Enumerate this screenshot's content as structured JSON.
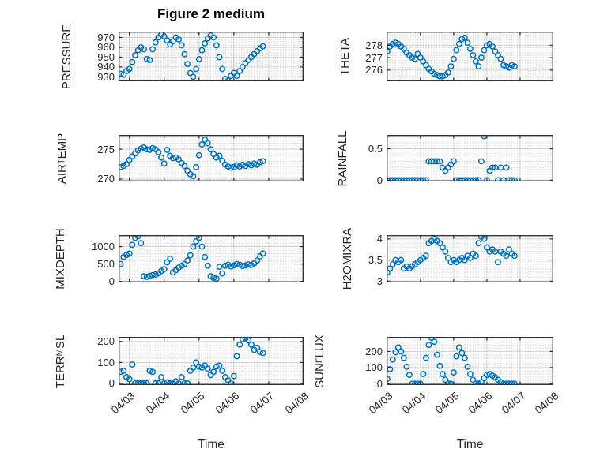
{
  "figure": {
    "title": "Figure 2 medium",
    "xlabel": "Time",
    "marker_color": "#0072BD"
  },
  "chart_data": {
    "type": "scatter",
    "marker": "open-circle",
    "grid": "major solid + minor dotted",
    "x_unit": "days since 04/03 00:00",
    "x_start": -0.25,
    "x_step": 0.0833333,
    "xticks": [
      0,
      1,
      2,
      3,
      4,
      5
    ],
    "xtick_labels": [
      "04/03",
      "04/04",
      "04/05",
      "04/06",
      "04/07",
      "04/08"
    ],
    "xlabel": "Time",
    "subplots": [
      {
        "name": "PRESSURE",
        "ylabel": {
          "pre": "PRESSURE",
          "sub": "",
          "post": ""
        },
        "ylim": [
          925.5,
          976
        ],
        "yticks": [
          930,
          940,
          950,
          960,
          970
        ],
        "ytick_labels": [
          "930",
          "940",
          "950",
          "960",
          "970"
        ],
        "values": [
          933,
          932,
          936,
          938,
          945,
          952,
          957,
          960,
          958,
          948,
          947,
          958,
          965,
          970,
          973,
          971,
          967,
          963,
          966,
          970,
          968,
          962,
          953,
          943,
          934,
          930,
          938,
          948,
          957,
          964,
          969,
          972,
          970,
          962,
          950,
          938,
          928,
          926,
          931,
          934,
          931,
          936,
          940,
          944,
          947,
          950,
          953,
          956,
          959,
          961
        ]
      },
      {
        "name": "THETA",
        "ylabel": {
          "pre": "THETA",
          "sub": "",
          "post": ""
        },
        "ylim": [
          275.1,
          279.1
        ],
        "yticks": [
          276,
          277,
          278
        ],
        "ytick_labels": [
          "276",
          "277",
          "278"
        ],
        "values": [
          277.2,
          277.1,
          277.3,
          277.5,
          277.9,
          278.1,
          278.2,
          278.1,
          277.9,
          277.7,
          277.4,
          277.2,
          277.0,
          276.9,
          277.3,
          277.0,
          276.7,
          276.4,
          276.1,
          275.9,
          275.7,
          275.6,
          275.5,
          275.5,
          275.6,
          275.8,
          276.3,
          276.9,
          277.6,
          278.1,
          278.5,
          278.6,
          278.2,
          277.7,
          277.2,
          276.7,
          276.3,
          277.0,
          277.6,
          278.0,
          278.1,
          277.9,
          277.5,
          277.2,
          276.9,
          276.4,
          276.3,
          276.2,
          276.4,
          276.3
        ]
      },
      {
        "name": "AIR_TEMP",
        "ylabel": {
          "pre": "AIR",
          "sub": "T",
          "post": "EMP"
        },
        "ylim": [
          269.6,
          277.4
        ],
        "yticks": [
          270,
          275
        ],
        "ytick_labels": [
          "270",
          "275"
        ],
        "values": [
          272.0,
          272.2,
          272.5,
          273.2,
          273.8,
          274.3,
          274.8,
          275.1,
          275.3,
          275.0,
          274.9,
          275.2,
          275.0,
          274.5,
          273.6,
          272.6,
          274.9,
          273.9,
          273.5,
          273.6,
          273.3,
          272.7,
          272.2,
          271.4,
          270.8,
          270.5,
          272.0,
          274.0,
          275.8,
          276.6,
          276.0,
          275.0,
          274.2,
          273.6,
          273.9,
          273.1,
          272.4,
          272.1,
          271.9,
          272.0,
          272.3,
          272.1,
          272.4,
          272.2,
          272.5,
          272.3,
          272.6,
          272.4,
          272.8,
          273.0
        ]
      },
      {
        "name": "RAINFALL",
        "ylabel": {
          "pre": "RAINFALL",
          "sub": "",
          "post": ""
        },
        "ylim": [
          -0.02,
          0.72
        ],
        "yticks": [
          0,
          0.5
        ],
        "ytick_labels": [
          "0",
          "0.5"
        ],
        "values": [
          0,
          0,
          0,
          0,
          0,
          0,
          0,
          0,
          0,
          0,
          0,
          0,
          0,
          0,
          0,
          0,
          0,
          0,
          0.3,
          0.3,
          0.3,
          0.3,
          0.3,
          0.2,
          0.15,
          0.2,
          0.25,
          0.3,
          0,
          0,
          0,
          0,
          0,
          0,
          0,
          0,
          0,
          0.3,
          0.7,
          0,
          0.15,
          0.2,
          0.2,
          0,
          0.2,
          0,
          0.2,
          0,
          0,
          0
        ]
      },
      {
        "name": "MIXDEPTH",
        "ylabel": {
          "pre": "MIXDEPTH",
          "sub": "",
          "post": ""
        },
        "ylim": [
          -30,
          1330
        ],
        "yticks": [
          0,
          500,
          1000
        ],
        "ytick_labels": [
          "0",
          "500",
          "1000"
        ],
        "values": [
          500,
          700,
          760,
          800,
          1050,
          1250,
          1300,
          1100,
          150,
          130,
          160,
          180,
          200,
          230,
          300,
          350,
          550,
          650,
          260,
          320,
          400,
          450,
          500,
          600,
          750,
          1000,
          1150,
          1250,
          1000,
          700,
          450,
          150,
          100,
          80,
          420,
          230,
          450,
          480,
          430,
          460,
          500,
          480,
          440,
          460,
          490,
          470,
          520,
          600,
          720,
          800
        ]
      },
      {
        "name": "H2OMIXRA",
        "ylabel": {
          "pre": "H2OMIXRA",
          "sub": "",
          "post": ""
        },
        "ylim": [
          2.97,
          4.09
        ],
        "yticks": [
          3,
          3.5,
          4
        ],
        "ytick_labels": [
          "3",
          "3.5",
          "4"
        ],
        "values": [
          3.0,
          3.05,
          3.1,
          3.2,
          3.3,
          3.4,
          3.5,
          3.45,
          3.5,
          3.3,
          3.35,
          3.3,
          3.35,
          3.4,
          3.45,
          3.5,
          3.55,
          3.6,
          3.9,
          3.95,
          4.0,
          3.95,
          3.9,
          3.8,
          3.7,
          3.55,
          3.45,
          3.5,
          3.45,
          3.5,
          3.55,
          3.5,
          3.6,
          3.55,
          3.65,
          3.6,
          3.9,
          4.05,
          4.0,
          3.8,
          3.7,
          3.75,
          3.7,
          3.45,
          3.7,
          3.65,
          3.6,
          3.75,
          3.65,
          3.6
        ]
      },
      {
        "name": "TERR_MSL",
        "ylabel": {
          "pre": "TERR",
          "sub": "M",
          "post": "SL"
        },
        "ylim": [
          -8,
          222
        ],
        "yticks": [
          0,
          100,
          200
        ],
        "ytick_labels": [
          "0",
          "100",
          "200"
        ],
        "values": [
          55,
          60,
          30,
          20,
          90,
          0,
          0,
          0,
          0,
          0,
          60,
          55,
          0,
          0,
          30,
          0,
          5,
          0,
          0,
          10,
          0,
          30,
          0,
          0,
          60,
          75,
          100,
          80,
          75,
          85,
          70,
          40,
          55,
          80,
          85,
          60,
          30,
          15,
          0,
          35,
          130,
          185,
          210,
          215,
          205,
          185,
          160,
          170,
          150,
          145
        ]
      },
      {
        "name": "SUN_FLUX",
        "ylabel": {
          "pre": "SUN",
          "sub": "F",
          "post": "LUX"
        },
        "ylim": [
          -8,
          290
        ],
        "yticks": [
          0,
          100,
          200
        ],
        "ytick_labels": [
          "0",
          "100",
          "200"
        ],
        "values": [
          0,
          0,
          0,
          30,
          90,
          150,
          195,
          225,
          200,
          160,
          105,
          55,
          0,
          0,
          0,
          0,
          60,
          160,
          240,
          285,
          260,
          180,
          110,
          60,
          25,
          0,
          0,
          70,
          170,
          225,
          190,
          160,
          105,
          60,
          25,
          0,
          0,
          10,
          35,
          55,
          60,
          50,
          40,
          25,
          10,
          0,
          0,
          0,
          0,
          0
        ]
      }
    ]
  }
}
